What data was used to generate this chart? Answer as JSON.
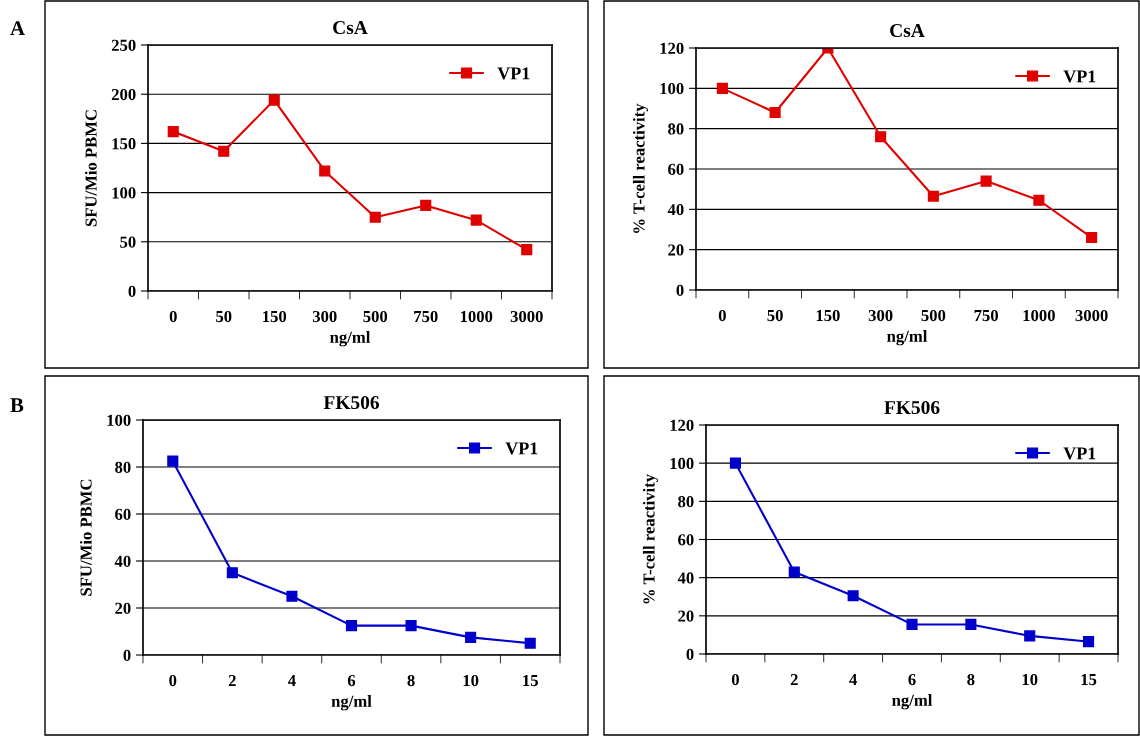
{
  "chart_data": [
    {
      "type": "line",
      "title": "CsA",
      "xlabel": "ng/ml",
      "ylabel": "SFU/Mio PBMC",
      "annotations": [
        "A"
      ],
      "categories": [
        "0",
        "50",
        "150",
        "300",
        "500",
        "750",
        "1000",
        "3000"
      ],
      "series": [
        {
          "name": "VP1",
          "color": "#e00000",
          "values": [
            162,
            142,
            194,
            122,
            75,
            87,
            72,
            42
          ]
        }
      ],
      "ylim": [
        0,
        250
      ],
      "yticks": [
        0,
        50,
        100,
        150,
        200,
        250
      ],
      "grid": "y",
      "legend": "top right",
      "marker": "square",
      "line_style": "solid"
    },
    {
      "type": "line",
      "title": "CsA",
      "xlabel": "ng/ml",
      "ylabel": "% T-cell reactivity",
      "categories": [
        "0",
        "50",
        "150",
        "300",
        "500",
        "750",
        "1000",
        "3000"
      ],
      "series": [
        {
          "name": "VP1",
          "color": "#e00000",
          "values": [
            100,
            88,
            120,
            76,
            46.5,
            54,
            44.5,
            26
          ]
        }
      ],
      "ylim": [
        0,
        120
      ],
      "yticks": [
        0,
        20,
        40,
        60,
        80,
        100,
        120
      ],
      "grid": "y",
      "legend": "top right",
      "marker": "square",
      "line_style": "solid"
    },
    {
      "type": "line",
      "title": "FK506",
      "xlabel": "ng/ml",
      "ylabel": "SFU/Mio PBMC",
      "annotations": [
        "B"
      ],
      "categories": [
        "0",
        "2",
        "4",
        "6",
        "8",
        "10",
        "15"
      ],
      "series": [
        {
          "name": "VP1",
          "color": "#0000cc",
          "values": [
            82.5,
            35,
            25,
            12.5,
            12.5,
            7.5,
            5
          ]
        }
      ],
      "ylim": [
        0,
        100
      ],
      "yticks": [
        0,
        20,
        40,
        60,
        80,
        100
      ],
      "grid": "y",
      "legend": "top right",
      "marker": "square",
      "line_style": "solid"
    },
    {
      "type": "line",
      "title": "FK506",
      "xlabel": "ng/ml",
      "ylabel": "% T-cell reactivity",
      "categories": [
        "0",
        "2",
        "4",
        "6",
        "8",
        "10",
        "15"
      ],
      "series": [
        {
          "name": "VP1",
          "color": "#0000cc",
          "values": [
            100,
            43,
            30.5,
            15.5,
            15.5,
            9.5,
            6.5
          ]
        }
      ],
      "ylim": [
        0,
        120
      ],
      "yticks": [
        0,
        20,
        40,
        60,
        80,
        100,
        120
      ],
      "grid": "y",
      "legend": "top right",
      "marker": "square",
      "line_style": "solid"
    }
  ]
}
